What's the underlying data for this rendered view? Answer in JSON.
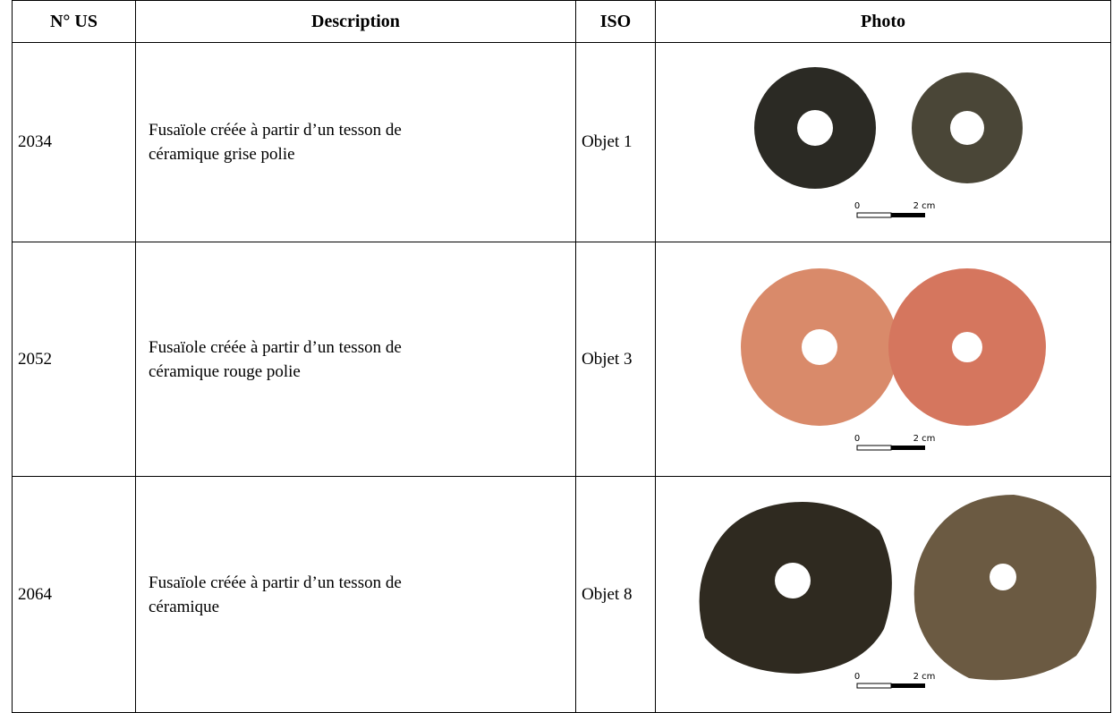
{
  "table": {
    "headers": [
      "N° US",
      "Description",
      "ISO",
      "Photo"
    ],
    "rows": [
      {
        "us": "2034",
        "description": [
          "Fusaïole créée à partir d’un tesson de",
          "céramique grise polie"
        ],
        "iso": "Objet 1",
        "scale": {
          "start": "0",
          "end": "2 cm"
        }
      },
      {
        "us": "2052",
        "description": [
          "Fusaïole créée à partir d’un tesson de",
          "céramique rouge polie"
        ],
        "iso": "Objet 3",
        "scale": {
          "start": "0",
          "end": "2 cm"
        }
      },
      {
        "us": "2064",
        "description": [
          "Fusaïole créée à partir d’un tesson de",
          "céramique"
        ],
        "iso": "Objet 8",
        "scale": {
          "start": "0",
          "end": "2 cm"
        }
      }
    ]
  }
}
